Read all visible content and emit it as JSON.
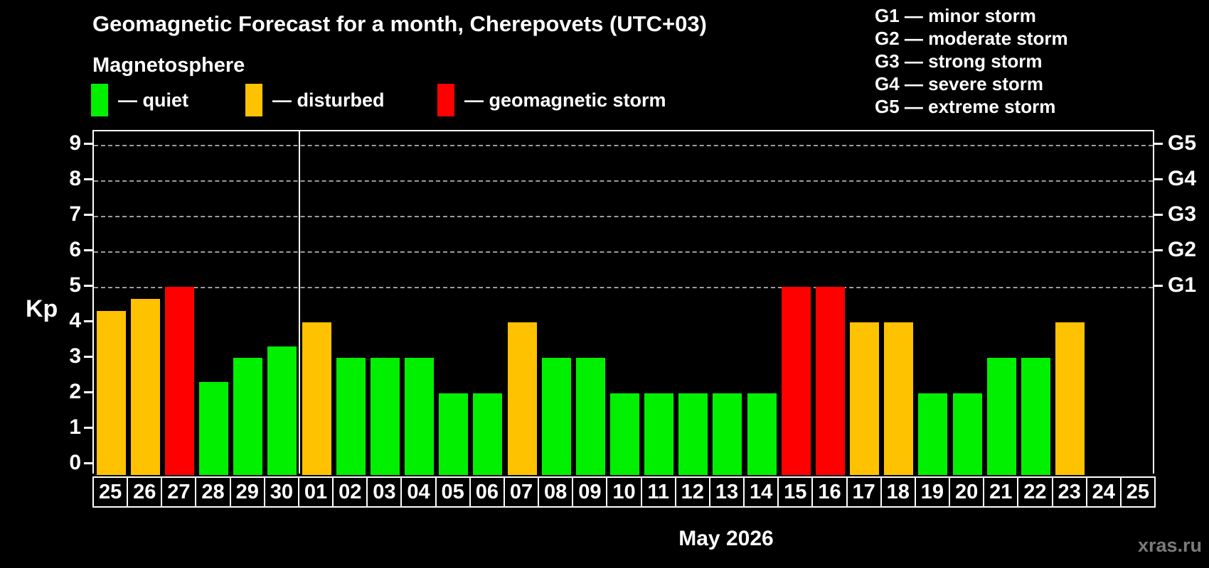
{
  "watermark": "xras.ru",
  "chart_data": {
    "type": "bar",
    "title": "Geomagnetic Forecast for a month, Cherepovets (UTC+03)",
    "subtitle": "Magnetosphere",
    "xlabel": "May 2026",
    "ylabel": "Kp",
    "ylim": [
      0,
      9.4
    ],
    "yticks": [
      0,
      1,
      2,
      3,
      4,
      5,
      6,
      7,
      8,
      9
    ],
    "grid_kp_levels": [
      5,
      6,
      7,
      8,
      9
    ],
    "right_axis_labels": [
      {
        "label": "G1",
        "kp": 5
      },
      {
        "label": "G2",
        "kp": 6
      },
      {
        "label": "G3",
        "kp": 7
      },
      {
        "label": "G4",
        "kp": 8
      },
      {
        "label": "G5",
        "kp": 9
      }
    ],
    "legend": [
      {
        "key": "quiet",
        "label": "— quiet",
        "color": "#00f000"
      },
      {
        "key": "disturbed",
        "label": "— disturbed",
        "color": "#ffc200"
      },
      {
        "key": "storm",
        "label": "— geomagnetic storm",
        "color": "#ff0000"
      }
    ],
    "storm_scale_legend": [
      "G1 — minor storm",
      "G2 — moderate storm",
      "G3 — strong storm",
      "G4 — severe storm",
      "G5 — extreme storm"
    ],
    "month_boundary_index": 6,
    "categories": [
      "25",
      "26",
      "27",
      "28",
      "29",
      "30",
      "01",
      "02",
      "03",
      "04",
      "05",
      "06",
      "07",
      "08",
      "09",
      "10",
      "11",
      "12",
      "13",
      "14",
      "15",
      "16",
      "17",
      "18",
      "19",
      "20",
      "21",
      "22",
      "23",
      "24",
      "25"
    ],
    "values": [
      4.33,
      4.67,
      5,
      2.33,
      3,
      3.33,
      4,
      3,
      3,
      3,
      2,
      2,
      4,
      3,
      3,
      2,
      2,
      2,
      2,
      2,
      5,
      5,
      4,
      4,
      2,
      2,
      3,
      3,
      4,
      null,
      null
    ],
    "states": [
      "disturbed",
      "disturbed",
      "storm",
      "quiet",
      "quiet",
      "quiet",
      "disturbed",
      "quiet",
      "quiet",
      "quiet",
      "quiet",
      "quiet",
      "disturbed",
      "quiet",
      "quiet",
      "quiet",
      "quiet",
      "quiet",
      "quiet",
      "quiet",
      "storm",
      "storm",
      "disturbed",
      "disturbed",
      "quiet",
      "quiet",
      "quiet",
      "quiet",
      "disturbed",
      null,
      null
    ]
  }
}
